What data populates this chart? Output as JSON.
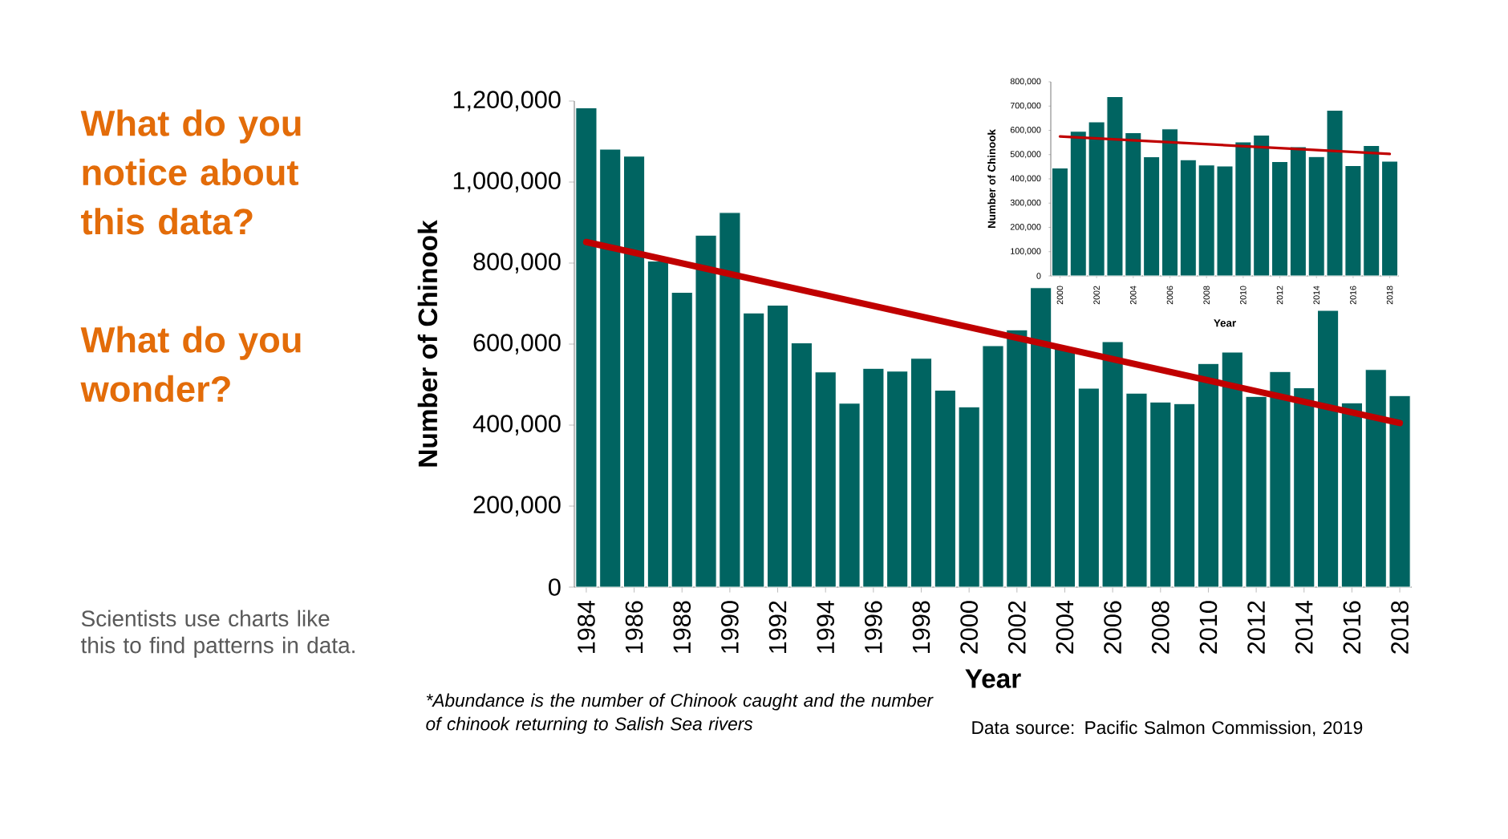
{
  "chart_data": [
    {
      "type": "bar",
      "xlabel": "Year",
      "ylabel": "Number of Chinook",
      "annotations": [
        "What do you notice about this data?",
        "What do you wonder?",
        "Scientists use charts like this to find patterns in data.",
        "*Abundance is the number of Chinook caught and the number of chinook returning to Salish Sea rivers",
        "Data source: Pacific Salmon Commission, 2019"
      ],
      "x": [
        1984,
        1985,
        1986,
        1987,
        1988,
        1989,
        1990,
        1991,
        1992,
        1993,
        1994,
        1995,
        1996,
        1997,
        1998,
        1999,
        2000,
        2001,
        2002,
        2003,
        2004,
        2005,
        2006,
        2007,
        2008,
        2009,
        2010,
        2011,
        2012,
        2013,
        2014,
        2015,
        2016,
        2017,
        2018
      ],
      "series": [
        {
          "color": "#006461",
          "values": [
            1183000,
            1081000,
            1064000,
            805000,
            728000,
            869000,
            925000,
            677000,
            696000,
            603000,
            531000,
            454000,
            540000,
            533000,
            565000,
            486000,
            445000,
            596000,
            635000,
            739000,
            590000,
            491000,
            606000,
            479000,
            457000,
            453000,
            552000,
            580000,
            471000,
            532000,
            492000,
            683000,
            455000,
            537000,
            473000
          ]
        },
        {
          "type": "line",
          "color": "#c00000",
          "x": [
            1984,
            2018
          ],
          "values": [
            852000,
            405000
          ]
        }
      ],
      "xlim": [
        1983.5,
        2018.5
      ],
      "xticks": [
        1984,
        1986,
        1988,
        1990,
        1992,
        1994,
        1996,
        1998,
        2000,
        2002,
        2004,
        2006,
        2008,
        2010,
        2012,
        2014,
        2016,
        2018
      ],
      "ylim": [
        0,
        1200000
      ],
      "yticks": [
        0,
        {
          "value": 200000,
          "label": "200,000"
        },
        {
          "value": 400000,
          "label": "400,000"
        },
        {
          "value": 600000,
          "label": "600,000"
        },
        {
          "value": 800000,
          "label": "800,000"
        },
        {
          "value": 1000000,
          "label": "1,000,000"
        },
        {
          "value": 1200000,
          "label": "1,200,000"
        }
      ]
    },
    {
      "type": "bar",
      "xlabel": "Year",
      "ylabel": "Number of Chinook",
      "x": [
        2000,
        2001,
        2002,
        2003,
        2004,
        2005,
        2006,
        2007,
        2008,
        2009,
        2010,
        2011,
        2012,
        2013,
        2014,
        2015,
        2016,
        2017,
        2018
      ],
      "series": [
        {
          "color": "#006461",
          "values": [
            445000,
            596000,
            635000,
            739000,
            590000,
            491000,
            606000,
            479000,
            457000,
            453000,
            552000,
            580000,
            471000,
            532000,
            492000,
            683000,
            455000,
            537000,
            473000
          ]
        },
        {
          "type": "line",
          "color": "#c00000",
          "x": [
            2000,
            2018
          ],
          "values": [
            575000,
            503000
          ]
        }
      ],
      "xlim": [
        1999.5,
        2018.5
      ],
      "xticks": [
        2000,
        2002,
        2004,
        2006,
        2008,
        2010,
        2012,
        2014,
        2016,
        2018
      ],
      "ylim": [
        0,
        800000
      ],
      "yticks": [
        0,
        {
          "value": 100000,
          "label": "100,000"
        },
        {
          "value": 200000,
          "label": "200,000"
        },
        {
          "value": 300000,
          "label": "300,000"
        },
        {
          "value": 400000,
          "label": "400,000"
        },
        {
          "value": 500000,
          "label": "500,000"
        },
        {
          "value": 600000,
          "label": "600,000"
        },
        {
          "value": 700000,
          "label": "700,000"
        },
        {
          "value": 800000,
          "label": "800,000"
        }
      ]
    }
  ]
}
